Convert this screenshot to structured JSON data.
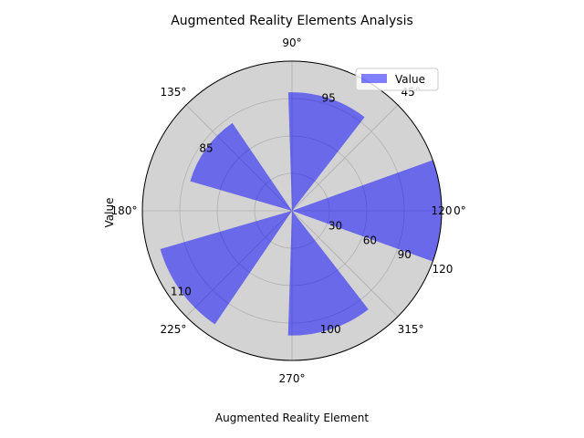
{
  "chart_data": {
    "type": "bar",
    "projection": "polar",
    "title": "Augmented Reality Elements Analysis",
    "xlabel": "Augmented Reality Element",
    "ylabel": "Value",
    "angle_ticks": [
      "0°",
      "45°",
      "90°",
      "135°",
      "180°",
      "225°",
      "270°",
      "315°"
    ],
    "radial_ticks": [
      "30",
      "60",
      "90",
      "120"
    ],
    "rlim": [
      0,
      120
    ],
    "grid": true,
    "legend": {
      "position": "top-right",
      "entries": [
        "Value"
      ]
    },
    "series": [
      {
        "name": "Value",
        "color": "#0000ff",
        "alpha": 0.5,
        "angles_deg": [
          0,
          72,
          144,
          216,
          288
        ],
        "values": [
          120,
          95,
          85,
          110,
          100
        ],
        "labels": [
          "120",
          "95",
          "85",
          "110",
          "100"
        ]
      }
    ],
    "colors": {
      "bar": "#6b6bea",
      "axes_bg": "#d3d3d3",
      "grid": "#b0b0b0"
    }
  }
}
